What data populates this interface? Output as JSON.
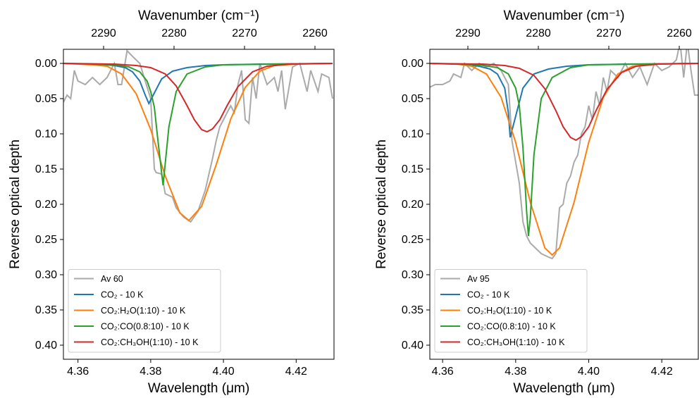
{
  "chart_data": [
    {
      "type": "line",
      "xlabel": "Wavelength (μm)",
      "x2label": "Wavenumber (cm⁻¹)",
      "ylabel": "Reverse optical depth",
      "xlim": [
        4.356,
        4.4304
      ],
      "xticks": [
        4.36,
        4.38,
        {
          "value": 4.4,
          "label": "4.40"
        },
        4.42
      ],
      "x2lim": [
        2295.7,
        2257.3
      ],
      "x2ticks": [
        2290,
        2280,
        2270,
        2260
      ],
      "ylim": [
        0.42,
        -0.02
      ],
      "yticks": [
        {
          "value": 0,
          "label": "0.00"
        },
        {
          "value": 0.05,
          "label": "0.05"
        },
        {
          "value": 0.1,
          "label": "0.10"
        },
        {
          "value": 0.15,
          "label": "0.15"
        },
        {
          "value": 0.2,
          "label": "0.20"
        },
        {
          "value": 0.25,
          "label": "0.25"
        },
        {
          "value": 0.3,
          "label": "0.30"
        },
        {
          "value": 0.35,
          "label": "0.35"
        },
        {
          "value": 0.4,
          "label": "0.40"
        }
      ],
      "legend": "lower left",
      "series": [
        {
          "name": "Av 60",
          "color": "#aaaaaa",
          "x": [
            4.356,
            4.357,
            4.358,
            4.359,
            4.36,
            4.362,
            4.364,
            4.366,
            4.368,
            4.37,
            4.371,
            4.372,
            4.3735,
            4.375,
            4.377,
            4.38,
            4.381,
            4.3815,
            4.383,
            4.384,
            4.386,
            4.387,
            4.389,
            4.391,
            4.393,
            4.395,
            4.397,
            4.398,
            4.399,
            4.401,
            4.402,
            4.403,
            4.404,
            4.405,
            4.406,
            4.407,
            4.408,
            4.409,
            4.41,
            4.412,
            4.414,
            4.415,
            4.416,
            4.417,
            4.419,
            4.421,
            4.423,
            4.424,
            4.426,
            4.427,
            4.429,
            4.43
          ],
          "values": [
            0.055,
            0.045,
            0.05,
            0.01,
            0.025,
            0.03,
            0.02,
            0.03,
            0.02,
            0.0,
            0.03,
            0.03,
            -0.018,
            -0.01,
            0.0,
            0.05,
            0.15,
            0.155,
            0.157,
            0.185,
            0.19,
            0.205,
            0.218,
            0.225,
            0.21,
            0.18,
            0.135,
            0.11,
            0.09,
            0.07,
            0.06,
            0.07,
            0.03,
            0.01,
            0.08,
            0.085,
            0.02,
            0.05,
            0.0,
            0.03,
            0.02,
            0.04,
            0.01,
            0.065,
            0.005,
            0.0,
            0.04,
            0.01,
            0.04,
            0.015,
            0.02,
            0.05
          ]
        },
        {
          "name": "CO₂ - 10 K",
          "color": "#1f77b4",
          "x": [
            4.356,
            4.365,
            4.37,
            4.373,
            4.375,
            4.377,
            4.3785,
            4.3795,
            4.381,
            4.383,
            4.386,
            4.39,
            4.395,
            4.4,
            4.41,
            4.43
          ],
          "values": [
            0,
            0.001,
            0.003,
            0.006,
            0.012,
            0.025,
            0.045,
            0.057,
            0.042,
            0.022,
            0.011,
            0.006,
            0.003,
            0.002,
            0.001,
            0
          ]
        },
        {
          "name": "CO₂:H₂O(1:10) - 10 K",
          "color": "#ff7f0e",
          "x": [
            4.356,
            4.364,
            4.368,
            4.372,
            4.376,
            4.38,
            4.384,
            4.388,
            4.3905,
            4.394,
            4.398,
            4.402,
            4.406,
            4.41,
            4.414,
            4.42,
            4.43
          ],
          "values": [
            0,
            0.002,
            0.004,
            0.015,
            0.043,
            0.094,
            0.16,
            0.212,
            0.223,
            0.203,
            0.144,
            0.079,
            0.034,
            0.011,
            0.003,
            0.001,
            0
          ]
        },
        {
          "name": "CO₂:CO(0.8:10) - 10 K",
          "color": "#2ca02c",
          "x": [
            4.356,
            4.37,
            4.374,
            4.377,
            4.379,
            4.38,
            4.381,
            4.382,
            4.3834,
            4.385,
            4.387,
            4.39,
            4.395,
            4.4,
            4.43
          ],
          "values": [
            0,
            0.002,
            0.005,
            0.012,
            0.025,
            0.04,
            0.062,
            0.11,
            0.173,
            0.09,
            0.04,
            0.015,
            0.005,
            0.002,
            0
          ]
        },
        {
          "name": "CO₂:CH₃OH(1:10) - 10 K",
          "color": "#d62728",
          "x": [
            4.356,
            4.37,
            4.376,
            4.38,
            4.384,
            4.387,
            4.39,
            4.392,
            4.394,
            4.3955,
            4.397,
            4.399,
            4.401,
            4.404,
            4.408,
            4.412,
            4.418,
            4.43
          ],
          "values": [
            0,
            0.001,
            0.003,
            0.006,
            0.015,
            0.032,
            0.06,
            0.08,
            0.094,
            0.097,
            0.093,
            0.08,
            0.06,
            0.033,
            0.012,
            0.004,
            0.001,
            0
          ]
        }
      ]
    },
    {
      "type": "line",
      "xlabel": "Wavelength (μm)",
      "x2label": "Wavenumber (cm⁻¹)",
      "ylabel": "Reverse optical depth",
      "xlim": [
        4.3565,
        4.43
      ],
      "xticks": [
        4.36,
        4.38,
        {
          "value": 4.4,
          "label": "4.40"
        },
        4.42
      ],
      "x2lim": [
        2295.4,
        2257.3
      ],
      "x2ticks": [
        2290,
        2280,
        2270,
        2260
      ],
      "ylim": [
        0.42,
        -0.02
      ],
      "yticks": [
        {
          "value": 0,
          "label": "0.00"
        },
        {
          "value": 0.05,
          "label": "0.05"
        },
        {
          "value": 0.1,
          "label": "0.10"
        },
        {
          "value": 0.15,
          "label": "0.15"
        },
        {
          "value": 0.2,
          "label": "0.20"
        },
        {
          "value": 0.25,
          "label": "0.25"
        },
        {
          "value": 0.3,
          "label": "0.30"
        },
        {
          "value": 0.35,
          "label": "0.35"
        },
        {
          "value": 0.4,
          "label": "0.40"
        }
      ],
      "legend": "lower left",
      "series": [
        {
          "name": "Av 95",
          "color": "#aaaaaa",
          "x": [
            4.356,
            4.358,
            4.36,
            4.362,
            4.363,
            4.365,
            4.366,
            4.368,
            4.37,
            4.372,
            4.374,
            4.376,
            4.378,
            4.379,
            4.38,
            4.381,
            4.382,
            4.383,
            4.384,
            4.385,
            4.386,
            4.387,
            4.389,
            4.39,
            4.391,
            4.392,
            4.393,
            4.394,
            4.395,
            4.396,
            4.397,
            4.398,
            4.399,
            4.4,
            4.401,
            4.402,
            4.403,
            4.404,
            4.405,
            4.406,
            4.408,
            4.41,
            4.412,
            4.414,
            4.416,
            4.418,
            4.42,
            4.422,
            4.424,
            4.425,
            4.426,
            4.427,
            4.428,
            4.429,
            4.43
          ],
          "values": [
            0.035,
            0.03,
            0.03,
            0.025,
            0.015,
            0.02,
            0.0,
            0.01,
            0.0,
            0.005,
            0.0,
            0.01,
            0.03,
            0.11,
            0.14,
            0.17,
            0.225,
            0.245,
            0.255,
            0.26,
            0.265,
            0.27,
            0.275,
            0.277,
            0.27,
            0.205,
            0.2,
            0.17,
            0.16,
            0.14,
            0.13,
            0.1,
            0.09,
            0.06,
            0.08,
            0.04,
            0.06,
            0.02,
            0.04,
            0.01,
            0.02,
            0.0,
            0.02,
            0.005,
            0.03,
            0.0,
            0.01,
            0.005,
            -0.005,
            -0.03,
            0.02,
            -0.03,
            0.01,
            0.045,
            0.045
          ]
        },
        {
          "name": "CO₂ - 10 K",
          "color": "#1f77b4",
          "x": [
            4.356,
            4.365,
            4.37,
            4.373,
            4.375,
            4.377,
            4.378,
            4.3785,
            4.38,
            4.382,
            4.385,
            4.389,
            4.394,
            4.4,
            4.41,
            4.43
          ],
          "values": [
            0,
            0.001,
            0.004,
            0.008,
            0.015,
            0.035,
            0.07,
            0.105,
            0.075,
            0.035,
            0.015,
            0.008,
            0.004,
            0.002,
            0.001,
            0
          ]
        },
        {
          "name": "CO₂:H₂O(1:10) - 10 K",
          "color": "#ff7f0e",
          "x": [
            4.356,
            4.364,
            4.368,
            4.372,
            4.376,
            4.38,
            4.384,
            4.388,
            4.39,
            4.392,
            4.396,
            4.4,
            4.404,
            4.408,
            4.412,
            4.418,
            4.43
          ],
          "values": [
            0,
            0.001,
            0.004,
            0.015,
            0.048,
            0.112,
            0.197,
            0.262,
            0.272,
            0.262,
            0.197,
            0.112,
            0.048,
            0.015,
            0.004,
            0.001,
            0
          ]
        },
        {
          "name": "CO₂:CO(0.8:10) - 10 K",
          "color": "#2ca02c",
          "x": [
            4.356,
            4.37,
            4.375,
            4.378,
            4.38,
            4.381,
            4.382,
            4.383,
            4.3835,
            4.384,
            4.385,
            4.387,
            4.39,
            4.395,
            4.4,
            4.43
          ],
          "values": [
            0,
            0.002,
            0.006,
            0.015,
            0.035,
            0.06,
            0.12,
            0.21,
            0.245,
            0.22,
            0.13,
            0.05,
            0.02,
            0.006,
            0.002,
            0
          ]
        },
        {
          "name": "CO₂:CH₃OH(1:10) - 10 K",
          "color": "#d62728",
          "x": [
            4.356,
            4.371,
            4.377,
            4.381,
            4.385,
            4.388,
            4.391,
            4.393,
            4.395,
            4.3965,
            4.398,
            4.4,
            4.402,
            4.405,
            4.409,
            4.413,
            4.419,
            4.43
          ],
          "values": [
            0,
            0.001,
            0.003,
            0.007,
            0.017,
            0.036,
            0.067,
            0.09,
            0.105,
            0.109,
            0.104,
            0.09,
            0.067,
            0.037,
            0.013,
            0.004,
            0.001,
            0
          ]
        }
      ]
    }
  ]
}
